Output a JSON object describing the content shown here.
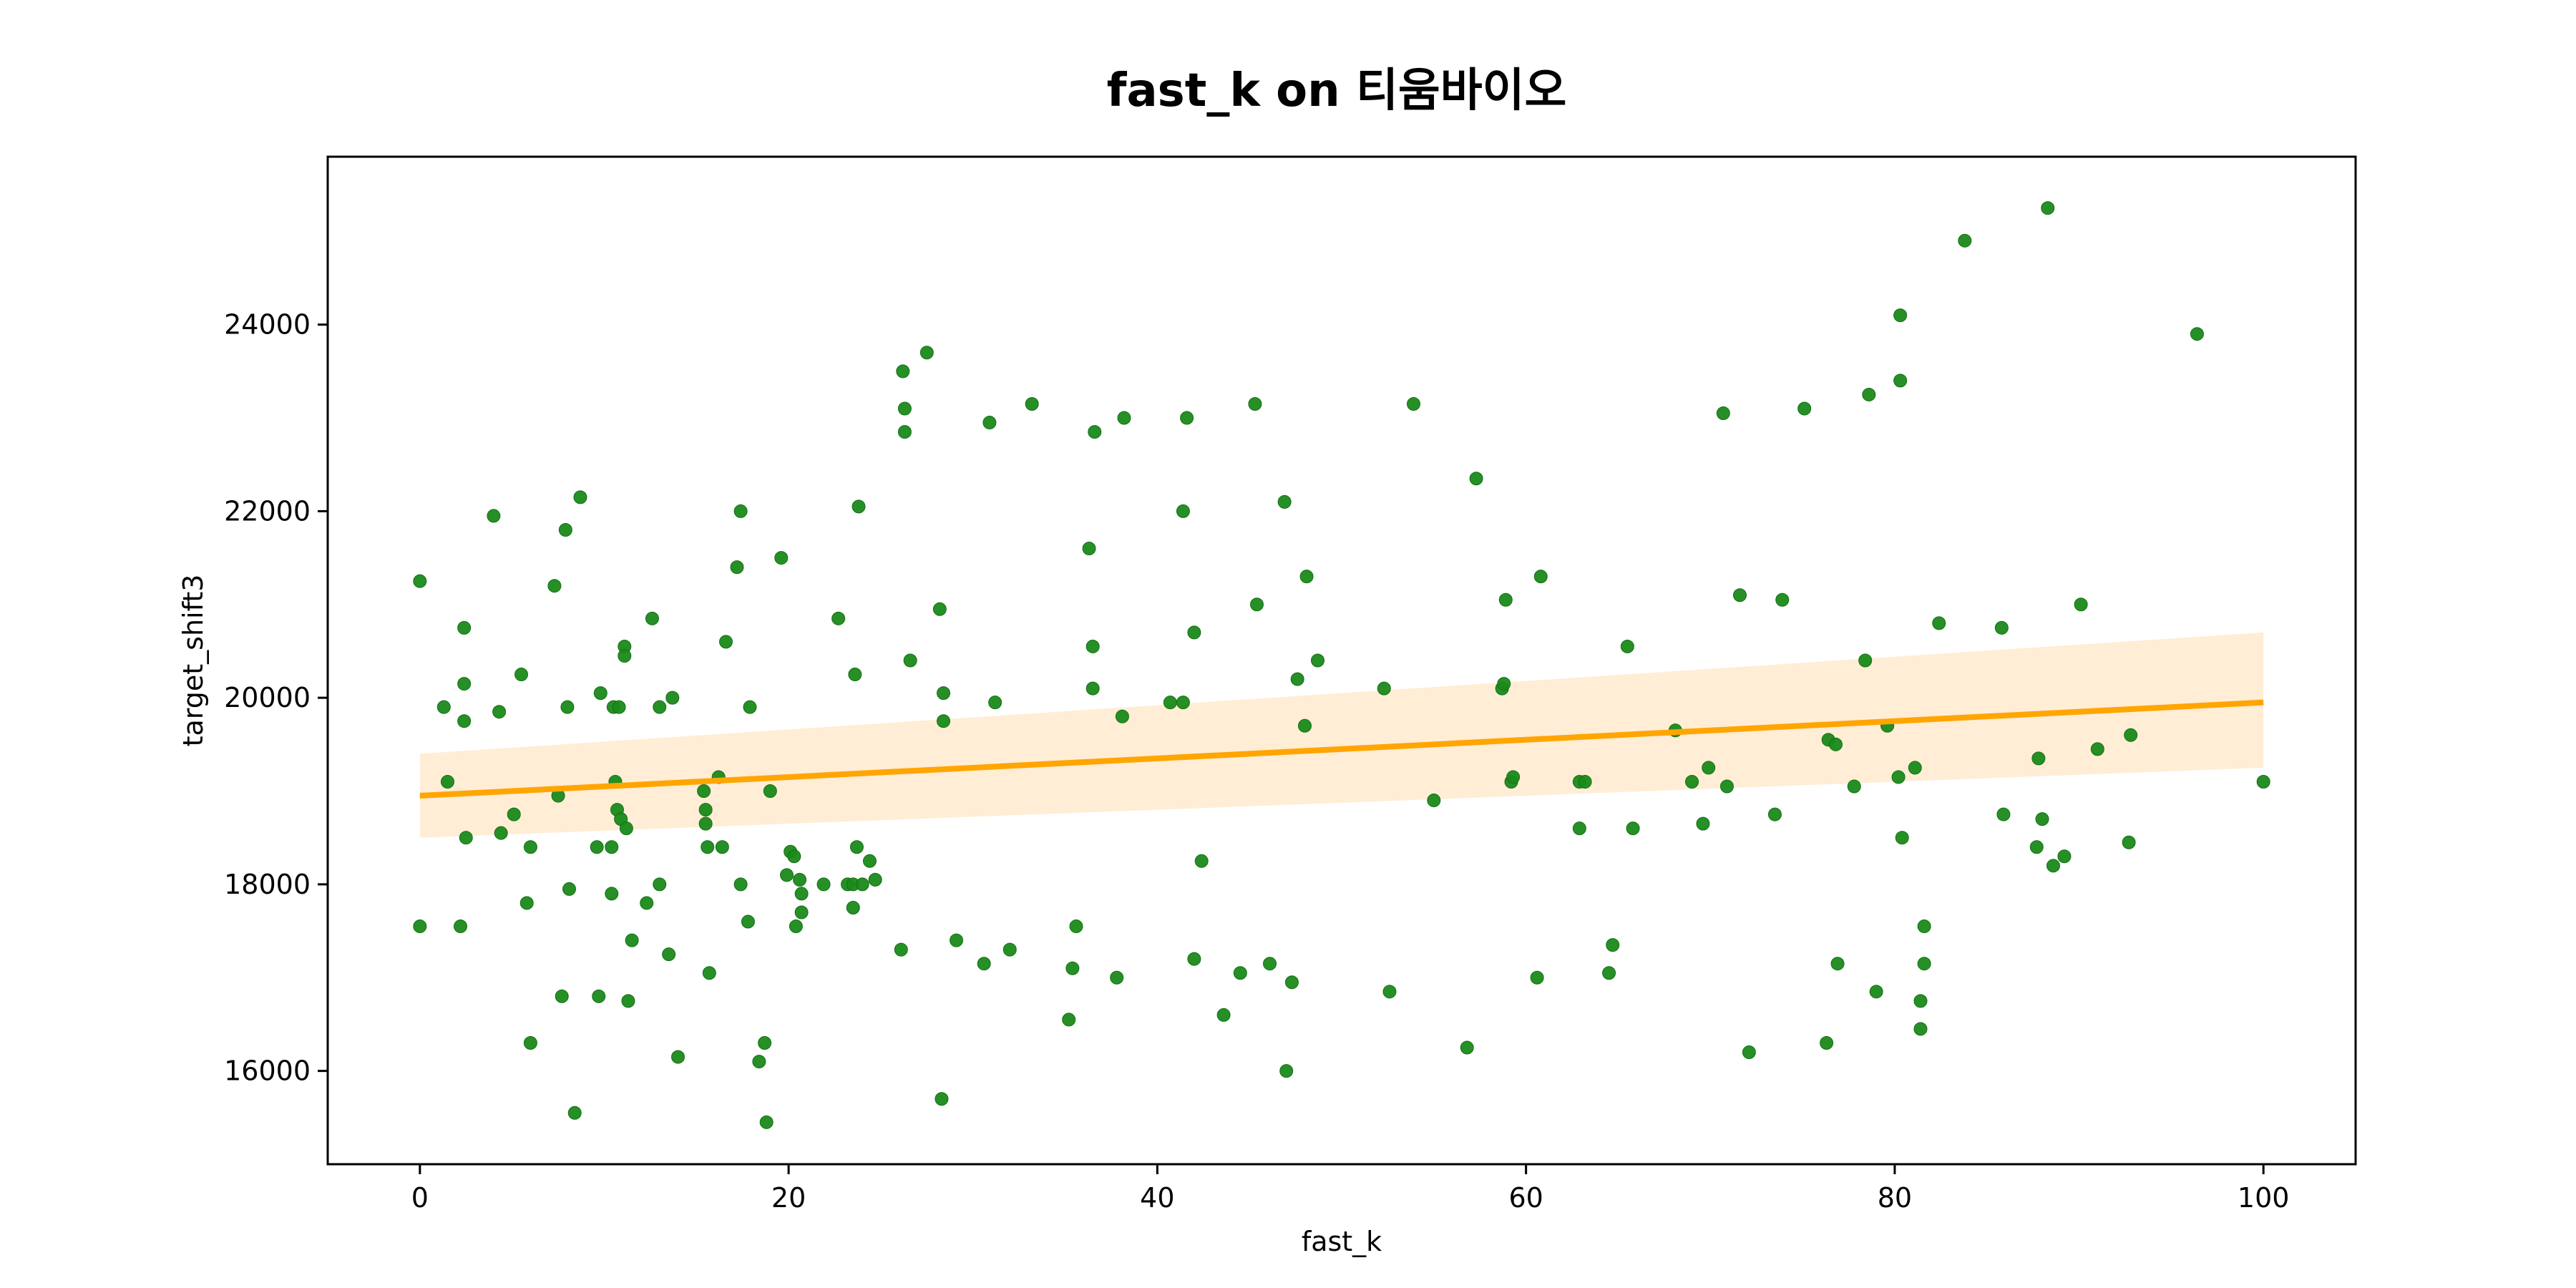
{
  "chart_data": {
    "type": "scatter",
    "title": "fast_k on 티움바이오",
    "xlabel": "fast_k",
    "ylabel": "target_shift3",
    "xlim": [
      -5,
      105
    ],
    "ylim": [
      15000,
      25800
    ],
    "xticks": [
      0,
      20,
      40,
      60,
      80,
      100
    ],
    "yticks": [
      16000,
      18000,
      20000,
      22000,
      24000
    ],
    "grid": false,
    "legend": "none",
    "point_color": "#1a8a1a",
    "line_color": "#ffa500",
    "band_color": "#ffedd5",
    "series": [
      {
        "points": [
          [
            0,
            21250
          ],
          [
            0,
            17550
          ],
          [
            1.3,
            19900
          ],
          [
            1.5,
            19100
          ],
          [
            2.2,
            17550
          ],
          [
            2.4,
            20750
          ],
          [
            2.4,
            20150
          ],
          [
            2.4,
            19750
          ],
          [
            2.5,
            18500
          ],
          [
            4,
            21950
          ],
          [
            4.3,
            19850
          ],
          [
            4.4,
            18550
          ],
          [
            5.1,
            18750
          ],
          [
            5.5,
            20250
          ],
          [
            5.8,
            17800
          ],
          [
            6,
            18400
          ],
          [
            6,
            16300
          ],
          [
            7.3,
            21200
          ],
          [
            7.5,
            18950
          ],
          [
            7.7,
            16800
          ],
          [
            7.9,
            21800
          ],
          [
            8,
            19900
          ],
          [
            8.1,
            17950
          ],
          [
            8.4,
            15550
          ],
          [
            8.7,
            22150
          ],
          [
            9.6,
            18400
          ],
          [
            9.7,
            16800
          ],
          [
            9.8,
            20050
          ],
          [
            10.4,
            17900
          ],
          [
            10.4,
            18400
          ],
          [
            10.5,
            19900
          ],
          [
            10.6,
            19100
          ],
          [
            10.7,
            18800
          ],
          [
            10.8,
            19900
          ],
          [
            10.9,
            18700
          ],
          [
            11.1,
            20550
          ],
          [
            11.1,
            20450
          ],
          [
            11.2,
            18600
          ],
          [
            11.3,
            16750
          ],
          [
            11.5,
            17400
          ],
          [
            12.3,
            17800
          ],
          [
            12.6,
            20850
          ],
          [
            13,
            19900
          ],
          [
            13,
            18000
          ],
          [
            13.5,
            17250
          ],
          [
            13.7,
            20000
          ],
          [
            14,
            16150
          ],
          [
            15.4,
            19000
          ],
          [
            15.5,
            18800
          ],
          [
            15.5,
            18650
          ],
          [
            15.6,
            18400
          ],
          [
            15.7,
            17050
          ],
          [
            16.2,
            19150
          ],
          [
            16.4,
            18400
          ],
          [
            16.6,
            20600
          ],
          [
            17.2,
            21400
          ],
          [
            17.4,
            22000
          ],
          [
            17.4,
            18000
          ],
          [
            17.8,
            17600
          ],
          [
            17.9,
            19900
          ],
          [
            18.4,
            16100
          ],
          [
            18.7,
            16300
          ],
          [
            18.8,
            15450
          ],
          [
            19,
            19000
          ],
          [
            19.6,
            21500
          ],
          [
            19.9,
            18100
          ],
          [
            20.1,
            18350
          ],
          [
            20.3,
            18300
          ],
          [
            20.4,
            17550
          ],
          [
            20.6,
            18050
          ],
          [
            20.7,
            17900
          ],
          [
            20.7,
            17700
          ],
          [
            21.9,
            18000
          ],
          [
            22.7,
            20850
          ],
          [
            23.2,
            18000
          ],
          [
            23.5,
            18000
          ],
          [
            23.5,
            17750
          ],
          [
            23.6,
            20250
          ],
          [
            23.7,
            18400
          ],
          [
            23.8,
            22050
          ],
          [
            24,
            18000
          ],
          [
            24.4,
            18250
          ],
          [
            24.7,
            18050
          ],
          [
            26.1,
            17300
          ],
          [
            26.2,
            23500
          ],
          [
            26.3,
            23100
          ],
          [
            26.3,
            22850
          ],
          [
            26.6,
            20400
          ],
          [
            27.5,
            23700
          ],
          [
            28.2,
            20950
          ],
          [
            28.3,
            15700
          ],
          [
            28.4,
            20050
          ],
          [
            28.4,
            19750
          ],
          [
            29.1,
            17400
          ],
          [
            30.6,
            17150
          ],
          [
            30.9,
            22950
          ],
          [
            31.2,
            19950
          ],
          [
            32,
            17300
          ],
          [
            33.2,
            23150
          ],
          [
            35.2,
            16550
          ],
          [
            35.4,
            17100
          ],
          [
            35.6,
            17550
          ],
          [
            36.3,
            21600
          ],
          [
            36.5,
            20550
          ],
          [
            36.5,
            20100
          ],
          [
            36.6,
            22850
          ],
          [
            37.8,
            17000
          ],
          [
            38.1,
            19800
          ],
          [
            38.2,
            23000
          ],
          [
            40.7,
            19950
          ],
          [
            41.4,
            19950
          ],
          [
            41.4,
            22000
          ],
          [
            41.6,
            23000
          ],
          [
            42,
            20700
          ],
          [
            42,
            17200
          ],
          [
            42.4,
            18250
          ],
          [
            43.6,
            16600
          ],
          [
            44.5,
            17050
          ],
          [
            45.3,
            23150
          ],
          [
            45.4,
            21000
          ],
          [
            46.1,
            17150
          ],
          [
            46.9,
            22100
          ],
          [
            47,
            16000
          ],
          [
            47.3,
            16950
          ],
          [
            47.6,
            20200
          ],
          [
            48,
            19700
          ],
          [
            48.1,
            21300
          ],
          [
            48.7,
            20400
          ],
          [
            52.3,
            20100
          ],
          [
            52.6,
            16850
          ],
          [
            53.9,
            23150
          ],
          [
            55,
            18900
          ],
          [
            56.8,
            16250
          ],
          [
            57.3,
            22350
          ],
          [
            58.7,
            20100
          ],
          [
            58.8,
            20150
          ],
          [
            58.9,
            21050
          ],
          [
            59.2,
            19100
          ],
          [
            59.3,
            19150
          ],
          [
            60.6,
            17000
          ],
          [
            60.8,
            21300
          ],
          [
            62.9,
            18600
          ],
          [
            62.9,
            19100
          ],
          [
            63.2,
            19100
          ],
          [
            64.5,
            17050
          ],
          [
            64.7,
            17350
          ],
          [
            65.5,
            20550
          ],
          [
            65.8,
            18600
          ],
          [
            68.1,
            19650
          ],
          [
            69,
            19100
          ],
          [
            69.6,
            18650
          ],
          [
            69.9,
            19250
          ],
          [
            70.7,
            23050
          ],
          [
            70.9,
            19050
          ],
          [
            71.6,
            21100
          ],
          [
            72.1,
            16200
          ],
          [
            73.5,
            18750
          ],
          [
            73.9,
            21050
          ],
          [
            75.1,
            23100
          ],
          [
            76.3,
            16300
          ],
          [
            76.4,
            19550
          ],
          [
            76.8,
            19500
          ],
          [
            76.9,
            17150
          ],
          [
            77.8,
            19050
          ],
          [
            78.4,
            20400
          ],
          [
            78.6,
            23250
          ],
          [
            79,
            16850
          ],
          [
            79.6,
            19700
          ],
          [
            80.2,
            19150
          ],
          [
            80.3,
            24100
          ],
          [
            80.3,
            23400
          ],
          [
            80.4,
            18500
          ],
          [
            81.1,
            19250
          ],
          [
            81.4,
            16750
          ],
          [
            81.4,
            16450
          ],
          [
            81.6,
            17550
          ],
          [
            81.6,
            17150
          ],
          [
            82.4,
            20800
          ],
          [
            83.8,
            24900
          ],
          [
            85.8,
            20750
          ],
          [
            85.9,
            18750
          ],
          [
            87.7,
            18400
          ],
          [
            87.8,
            19350
          ],
          [
            88,
            18700
          ],
          [
            88.3,
            25250
          ],
          [
            88.6,
            18200
          ],
          [
            89.2,
            18300
          ],
          [
            90.1,
            21000
          ],
          [
            91,
            19450
          ],
          [
            92.7,
            18450
          ],
          [
            92.8,
            19600
          ],
          [
            96.4,
            23900
          ],
          [
            100,
            19100
          ]
        ]
      }
    ],
    "regression": {
      "x_range": [
        0,
        100
      ],
      "y_start": 18950,
      "y_end": 19950,
      "ci_lower": [
        18500,
        19250
      ],
      "ci_upper": [
        19400,
        20700
      ]
    }
  }
}
